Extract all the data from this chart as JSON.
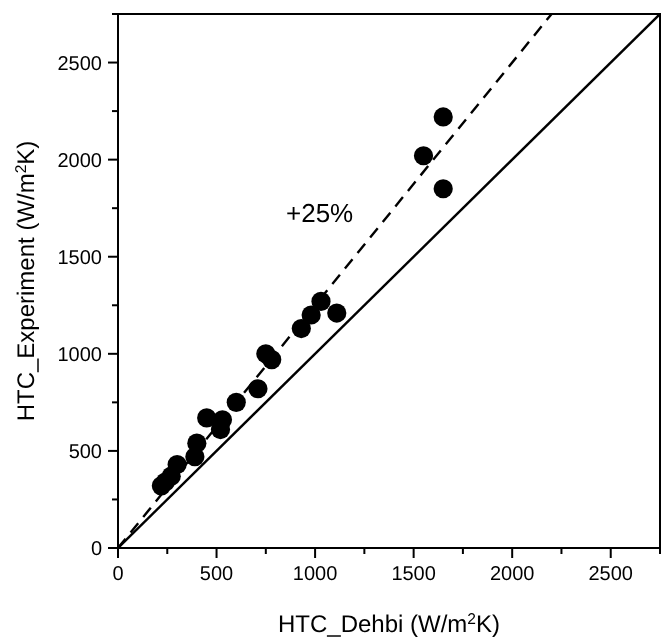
{
  "chart_data": {
    "type": "scatter",
    "xlabel": "HTC_Dehbi (W/m$^{2}$K)",
    "ylabel": "HTC_Experiment (W/m$^{2}$K)",
    "xlim": [
      0,
      2750
    ],
    "ylim": [
      0,
      2750
    ],
    "xticks": [
      0,
      {
        "value": 250,
        "label": null
      },
      500,
      {
        "value": 750,
        "label": null
      },
      1000,
      {
        "value": 1250,
        "label": null
      },
      1500,
      {
        "value": 1750,
        "label": null
      },
      2000,
      {
        "value": 2250,
        "label": null
      },
      2500,
      {
        "value": 2750,
        "label": null
      }
    ],
    "yticks": [
      0,
      {
        "value": 250,
        "label": null
      },
      500,
      {
        "value": 750,
        "label": null
      },
      1000,
      {
        "value": 1250,
        "label": null
      },
      1500,
      {
        "value": 1750,
        "label": null
      },
      2000,
      {
        "value": 2250,
        "label": null
      },
      2500,
      {
        "value": 2750,
        "label": null
      }
    ],
    "grid": false,
    "annotations": [
      "+25%"
    ],
    "series": [
      {
        "color": "#000000",
        "marker": "circle",
        "x": [
          220,
          240,
          270,
          300,
          390,
          400,
          450,
          520,
          530,
          600,
          710,
          750,
          780,
          930,
          980,
          1030,
          1110,
          1550,
          1650,
          1650
        ],
        "values": [
          320,
          340,
          370,
          430,
          470,
          540,
          670,
          610,
          660,
          750,
          820,
          1000,
          970,
          1130,
          1200,
          1270,
          1210,
          2020,
          2220,
          1850
        ]
      },
      {
        "type": "line",
        "color": "#000000",
        "marker": "none",
        "line_style": "solid",
        "x": [
          0,
          2750
        ],
        "values": [
          0,
          2750
        ]
      },
      {
        "type": "line",
        "color": "#000000",
        "marker": "none",
        "line_style": "dashed",
        "x": [
          0,
          2200
        ],
        "values": [
          0,
          2750
        ]
      }
    ]
  }
}
